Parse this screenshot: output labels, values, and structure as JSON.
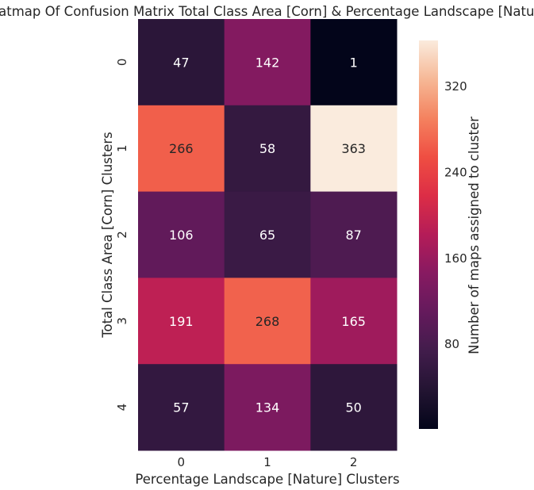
{
  "chart_data": {
    "type": "heatmap",
    "title": "Heatmap Of Confusion Matrix Total Class Area [Corn] & Percentage Landscape [Nature]",
    "xlabel": "Percentage Landscape [Nature] Clusters",
    "ylabel": "Total Class Area [Corn] Clusters",
    "x_categories": [
      "0",
      "1",
      "2"
    ],
    "y_categories": [
      "0",
      "1",
      "2",
      "3",
      "4"
    ],
    "values": [
      [
        47,
        142,
        1
      ],
      [
        266,
        58,
        363
      ],
      [
        106,
        65,
        87
      ],
      [
        191,
        268,
        165
      ],
      [
        57,
        134,
        50
      ]
    ],
    "colorbar": {
      "label": "Number of maps assigned to cluster",
      "range": [
        1,
        363
      ],
      "ticks": [
        80,
        160,
        240,
        320
      ],
      "colormap": "rocket"
    }
  }
}
